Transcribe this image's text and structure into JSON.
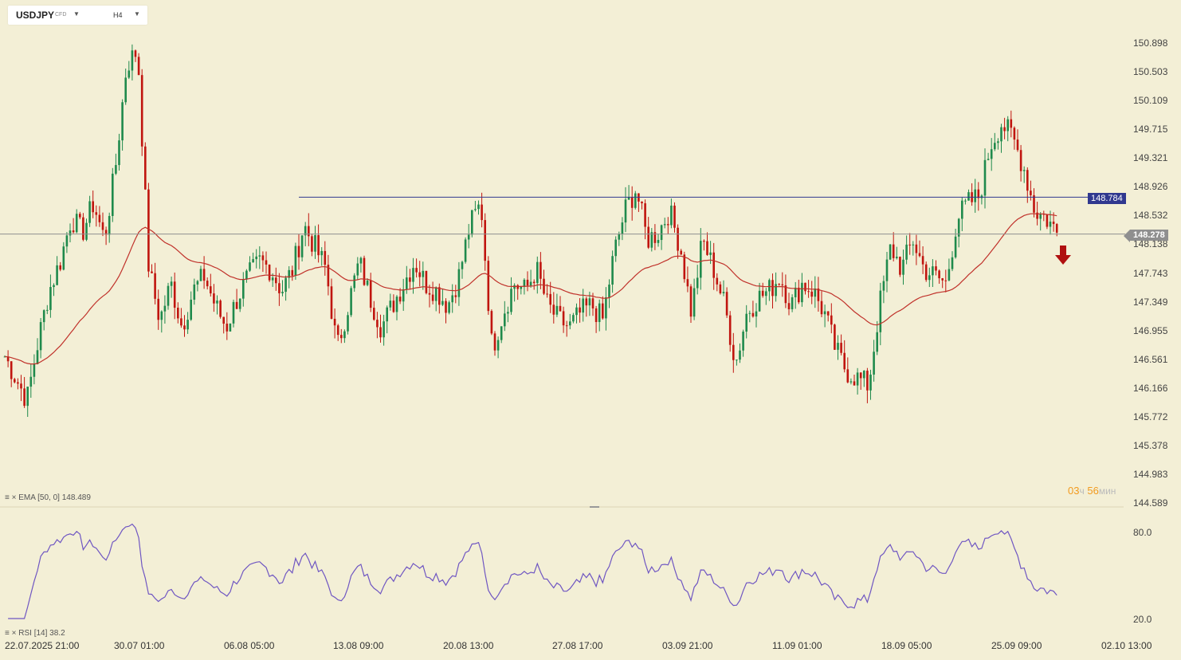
{
  "header": {
    "symbol": "USDJPY",
    "symbol_type": "CFD",
    "timeframe": "H4"
  },
  "chart_data": {
    "type": "candlestick",
    "price_axis_ticks": [
      "150.898",
      "150.503",
      "150.109",
      "149.715",
      "149.321",
      "148.926",
      "148.532",
      "148.138",
      "147.743",
      "147.349",
      "146.955",
      "146.561",
      "146.166",
      "145.772",
      "145.378",
      "144.983",
      "144.589"
    ],
    "time_axis_labels": [
      "22.07.2025 21:00",
      "30.07 01:00",
      "06.08 05:00",
      "13.08 09:00",
      "20.08 13:00",
      "27.08 17:00",
      "03.09 21:00",
      "11.09 01:00",
      "18.09 05:00",
      "25.09 09:00",
      "02.10 13:00"
    ],
    "current_price": "148.278",
    "horizontal_line_price": "148.784",
    "overlay": {
      "name": "EMA",
      "params": "[50, 0]",
      "value": "148.489"
    },
    "oscillator": {
      "name": "RSI",
      "params": "[14]",
      "value": "38.2",
      "levels": [
        "80.0",
        "20.0"
      ]
    },
    "timer": {
      "hours": "03",
      "hours_unit": "ч",
      "minutes": "56",
      "minutes_unit": "мин"
    },
    "colors": {
      "up": "#1f8a4c",
      "down": "#c0150f",
      "ema": "#c0312a",
      "rsi": "#6f56c2",
      "hline": "#30388f",
      "price_tag": "#8f8f8f",
      "signal_arrow": "#b01010"
    },
    "close_path": [
      {
        "x": "22.07.2025 21:00",
        "close": 146.6
      },
      {
        "x": "",
        "close": 146.3
      },
      {
        "x": "",
        "close": 146.0
      },
      {
        "x": "",
        "close": 146.8
      },
      {
        "x": "",
        "close": 147.5
      },
      {
        "x": "",
        "close": 147.9
      },
      {
        "x": "",
        "close": 148.5
      },
      {
        "x": "",
        "close": 148.3
      },
      {
        "x": "",
        "close": 148.7
      },
      {
        "x": "",
        "close": 148.2
      },
      {
        "x": "30.07 01:00",
        "close": 149.2
      },
      {
        "x": "",
        "close": 150.6
      },
      {
        "x": "",
        "close": 150.8
      },
      {
        "x": "",
        "close": 147.8
      },
      {
        "x": "",
        "close": 147.1
      },
      {
        "x": "",
        "close": 147.6
      },
      {
        "x": "",
        "close": 147.0
      },
      {
        "x": "",
        "close": 147.5
      },
      {
        "x": "",
        "close": 147.7
      },
      {
        "x": "",
        "close": 147.3
      },
      {
        "x": "06.08 05:00",
        "close": 147.0
      },
      {
        "x": "",
        "close": 147.4
      },
      {
        "x": "",
        "close": 147.7
      },
      {
        "x": "",
        "close": 147.9
      },
      {
        "x": "",
        "close": 147.8
      },
      {
        "x": "",
        "close": 147.5
      },
      {
        "x": "",
        "close": 147.8
      },
      {
        "x": "",
        "close": 148.4
      },
      {
        "x": "",
        "close": 148.1
      },
      {
        "x": "",
        "close": 147.8
      },
      {
        "x": "13.08 09:00",
        "close": 146.7
      },
      {
        "x": "",
        "close": 147.3
      },
      {
        "x": "",
        "close": 147.9
      },
      {
        "x": "",
        "close": 147.4
      },
      {
        "x": "",
        "close": 147.0
      },
      {
        "x": "",
        "close": 147.3
      },
      {
        "x": "",
        "close": 147.6
      },
      {
        "x": "",
        "close": 147.9
      },
      {
        "x": "",
        "close": 147.6
      },
      {
        "x": "",
        "close": 147.5
      },
      {
        "x": "20.08 13:00",
        "close": 147.3
      },
      {
        "x": "",
        "close": 147.7
      },
      {
        "x": "",
        "close": 148.4
      },
      {
        "x": "",
        "close": 148.7
      },
      {
        "x": "",
        "close": 146.7
      },
      {
        "x": "",
        "close": 147.2
      },
      {
        "x": "",
        "close": 147.6
      },
      {
        "x": "",
        "close": 147.5
      },
      {
        "x": "",
        "close": 147.8
      },
      {
        "x": "",
        "close": 147.3
      },
      {
        "x": "27.08 17:00",
        "close": 147.1
      },
      {
        "x": "",
        "close": 147.0
      },
      {
        "x": "",
        "close": 147.2
      },
      {
        "x": "",
        "close": 147.3
      },
      {
        "x": "",
        "close": 147.1
      },
      {
        "x": "",
        "close": 148.0
      },
      {
        "x": "",
        "close": 148.6
      },
      {
        "x": "",
        "close": 148.9
      },
      {
        "x": "",
        "close": 148.2
      },
      {
        "x": "",
        "close": 148.3
      },
      {
        "x": "03.09 21:00",
        "close": 148.6
      },
      {
        "x": "",
        "close": 148.1
      },
      {
        "x": "",
        "close": 147.2
      },
      {
        "x": "",
        "close": 148.2
      },
      {
        "x": "",
        "close": 147.8
      },
      {
        "x": "",
        "close": 147.3
      },
      {
        "x": "",
        "close": 146.5
      },
      {
        "x": "",
        "close": 147.2
      },
      {
        "x": "",
        "close": 147.4
      },
      {
        "x": "",
        "close": 147.5
      },
      {
        "x": "11.09 01:00",
        "close": 147.7
      },
      {
        "x": "",
        "close": 147.3
      },
      {
        "x": "",
        "close": 147.6
      },
      {
        "x": "",
        "close": 147.5
      },
      {
        "x": "",
        "close": 147.2
      },
      {
        "x": "",
        "close": 146.7
      },
      {
        "x": "",
        "close": 146.4
      },
      {
        "x": "",
        "close": 146.3
      },
      {
        "x": "",
        "close": 146.2
      },
      {
        "x": "",
        "close": 147.3
      },
      {
        "x": "18.09 05:00",
        "close": 148.1
      },
      {
        "x": "",
        "close": 147.8
      },
      {
        "x": "",
        "close": 148.2
      },
      {
        "x": "",
        "close": 147.8
      },
      {
        "x": "",
        "close": 147.7
      },
      {
        "x": "",
        "close": 147.6
      },
      {
        "x": "",
        "close": 148.5
      },
      {
        "x": "",
        "close": 148.7
      },
      {
        "x": "",
        "close": 148.8
      },
      {
        "x": "",
        "close": 149.5
      },
      {
        "x": "25.09 09:00",
        "close": 149.8
      },
      {
        "x": "",
        "close": 149.6
      },
      {
        "x": "",
        "close": 149.2
      },
      {
        "x": "",
        "close": 148.6
      },
      {
        "x": "",
        "close": 148.5
      },
      {
        "x": "",
        "close": 148.3
      }
    ]
  },
  "icons": {
    "indicator_menu": "bars-icon",
    "close": "close-icon",
    "signal": "down-arrow-icon"
  }
}
